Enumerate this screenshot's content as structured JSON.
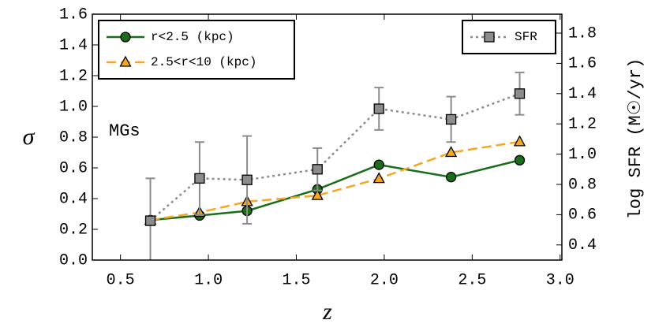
{
  "chart_data": {
    "type": "line",
    "x_label": "z",
    "y_label": "σ",
    "y2_label": "log SFR (M☉/yr)",
    "annotation": "MGs",
    "xlim": [
      0.34,
      3.01
    ],
    "xticks": [
      {
        "value": 0.5,
        "label": "0.5"
      },
      {
        "value": 1,
        "label": "1.0"
      },
      {
        "value": 1.5,
        "label": "1.5"
      },
      {
        "value": 2,
        "label": "2.0"
      },
      {
        "value": 2.5,
        "label": "2.5"
      },
      {
        "value": 3,
        "label": "3.0"
      }
    ],
    "ylim": [
      0,
      1.6
    ],
    "yticks": [
      {
        "value": 0,
        "label": "0.0"
      },
      0.2,
      0.4,
      0.6,
      0.8,
      {
        "value": 1,
        "label": "1.0"
      },
      1.2,
      1.4,
      1.6
    ],
    "y2lim": [
      0.3,
      1.925
    ],
    "y2ticks": [
      0.4,
      0.6,
      0.8,
      {
        "value": 1,
        "label": "1.0"
      },
      1.2,
      1.4,
      1.6,
      1.8
    ],
    "legend_loc": "upper left",
    "legend2_loc": "upper right",
    "series": [
      {
        "name": "r<2.5 (kpc)",
        "color": "#1a6e1a",
        "marker": "circle",
        "linestyle": "solid",
        "x": [
          0.67,
          0.95,
          1.22,
          1.62,
          1.97,
          2.38,
          2.77
        ],
        "values": [
          0.26,
          0.29,
          0.32,
          0.46,
          0.62,
          0.54,
          0.65
        ]
      },
      {
        "name": "2.5<r<10 (kpc)",
        "color": "#f5a623",
        "marker": "triangle",
        "linestyle": "dashed",
        "x": [
          0.67,
          0.95,
          1.22,
          1.62,
          1.97,
          2.38,
          2.77
        ],
        "values": [
          0.26,
          0.31,
          0.38,
          0.42,
          0.53,
          0.7,
          0.77
        ]
      },
      {
        "name": "SFR",
        "color": "#8c8c8c",
        "marker": "square",
        "linestyle": "dotted",
        "axis": "y2",
        "x": [
          0.67,
          0.95,
          1.22,
          1.62,
          1.97,
          2.38,
          2.77
        ],
        "values": [
          0.56,
          0.84,
          0.83,
          0.9,
          1.3,
          1.23,
          1.4
        ],
        "errors": [
          0.28,
          0.24,
          0.29,
          0.14,
          0.14,
          0.15,
          0.14
        ]
      }
    ]
  }
}
